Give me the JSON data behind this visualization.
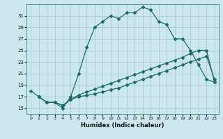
{
  "xlabel": "Humidex (Indice chaleur)",
  "bg_color": "#cce8ee",
  "grid_color": "#aacdd6",
  "line_color": "#1a6b6b",
  "xlim": [
    -0.5,
    23.5
  ],
  "ylim": [
    14.0,
    33.0
  ],
  "xticks": [
    0,
    1,
    2,
    3,
    4,
    5,
    6,
    7,
    8,
    9,
    10,
    11,
    12,
    13,
    14,
    15,
    16,
    17,
    18,
    19,
    20,
    21,
    22,
    23
  ],
  "yticks": [
    15,
    17,
    19,
    21,
    23,
    25,
    27,
    29,
    31
  ],
  "line1_x": [
    0,
    1,
    2,
    3,
    4,
    5,
    6,
    7,
    8,
    9,
    10,
    11,
    12,
    13,
    14,
    15,
    16,
    17,
    18,
    19,
    20,
    21,
    22,
    23
  ],
  "line1_y": [
    18,
    17,
    16,
    16,
    15,
    17,
    21,
    25.5,
    29,
    30,
    31,
    30.5,
    31.5,
    31.5,
    32.5,
    32,
    30,
    29.5,
    27,
    27,
    25,
    22.5,
    20,
    19.5
  ],
  "line2_x": [
    1,
    2,
    3,
    4,
    5,
    6,
    7,
    8,
    9,
    10,
    11,
    12,
    13,
    14,
    15,
    16,
    17,
    18,
    19,
    20,
    21,
    22,
    23
  ],
  "line2_y": [
    17,
    16,
    16,
    15.5,
    16.5,
    17.0,
    17.2,
    17.5,
    17.8,
    18.2,
    18.5,
    19.0,
    19.5,
    20.0,
    20.5,
    21.0,
    21.5,
    22.0,
    22.5,
    23.0,
    23.5,
    24.0,
    20.0
  ],
  "line3_x": [
    1,
    2,
    3,
    4,
    5,
    6,
    7,
    8,
    9,
    10,
    11,
    12,
    13,
    14,
    15,
    16,
    17,
    18,
    19,
    20,
    21,
    22,
    23
  ],
  "line3_y": [
    17,
    16,
    16,
    15.5,
    16.5,
    17.3,
    17.8,
    18.3,
    18.8,
    19.3,
    19.8,
    20.3,
    20.8,
    21.3,
    21.8,
    22.3,
    22.8,
    23.3,
    23.8,
    24.5,
    25.0,
    25.0,
    19.5
  ]
}
